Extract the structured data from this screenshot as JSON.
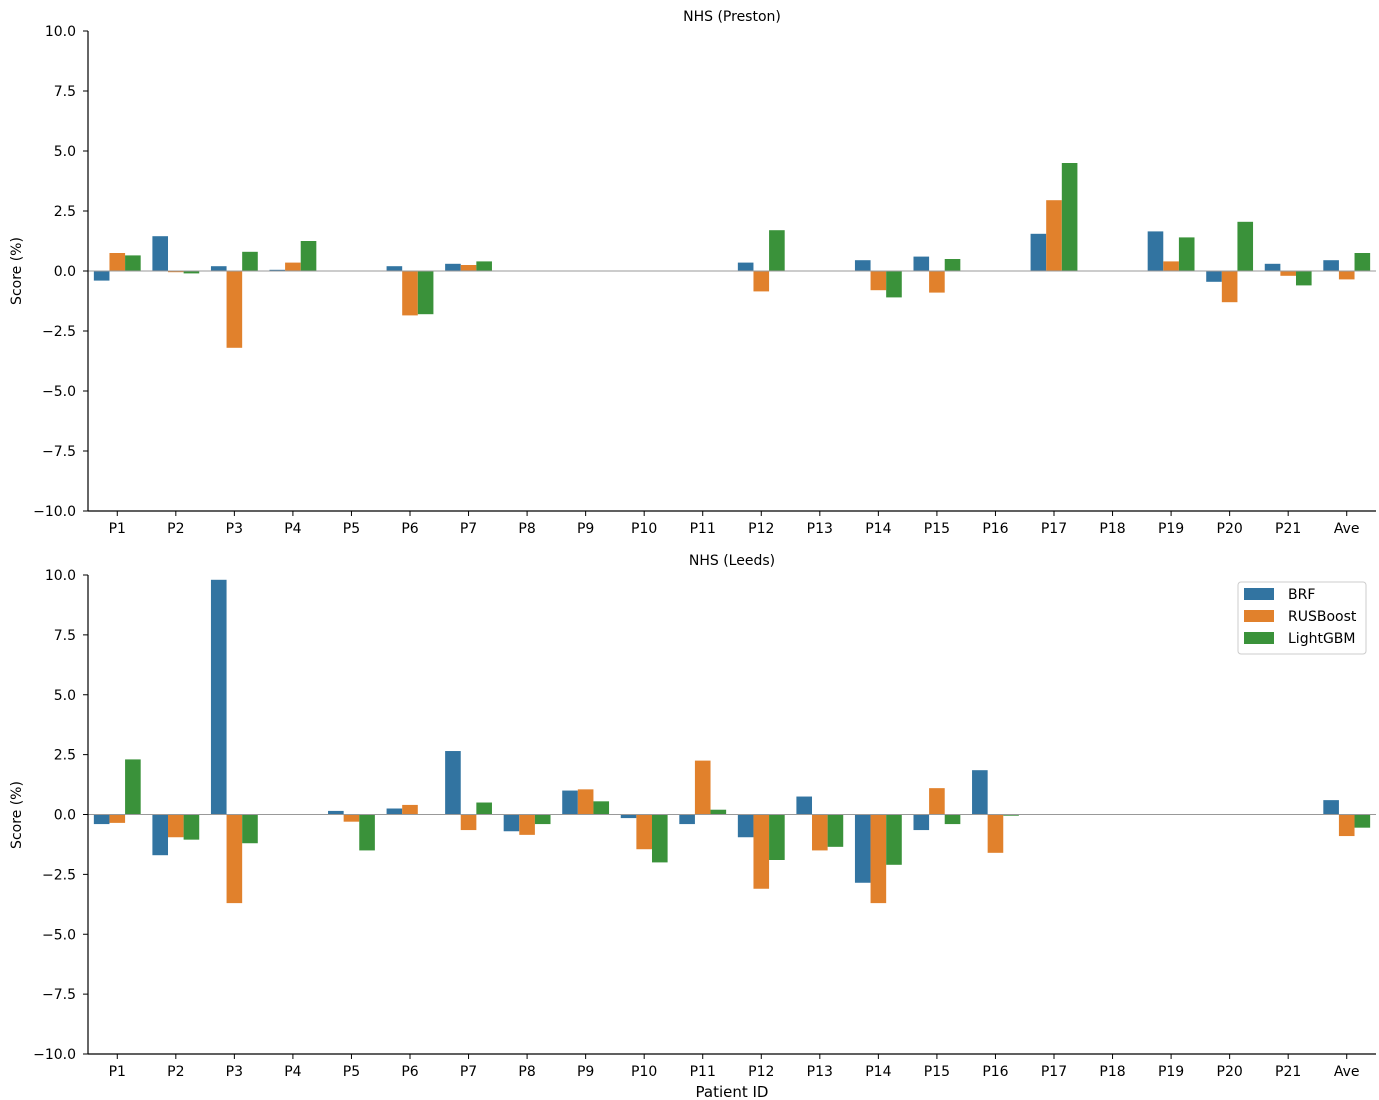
{
  "figure": {
    "xlabel_bottom": "Patient ID"
  },
  "legend": {
    "entries": [
      "BRF",
      "RUSBoost",
      "LightGBM"
    ],
    "placement": "top-right of lower panel"
  },
  "colors": {
    "BRF": "#3274a1",
    "RUSBoost": "#e1812c",
    "LightGBM": "#3a923a",
    "zero_line": "#999999"
  },
  "chart_data": [
    {
      "type": "bar",
      "title": "NHS (Preston)",
      "xlabel": "",
      "ylabel": "Score (%)",
      "ylim": [
        -10,
        10
      ],
      "yticks": [
        "10.0",
        "7.5",
        "5.0",
        "2.5",
        "0.0",
        "−2.5",
        "−5.0",
        "−7.5",
        "−10.0"
      ],
      "categories": [
        "P1",
        "P2",
        "P3",
        "P4",
        "P5",
        "P6",
        "P7",
        "P8",
        "P9",
        "P10",
        "P11",
        "P12",
        "P13",
        "P14",
        "P15",
        "P16",
        "P17",
        "P18",
        "P19",
        "P20",
        "P21",
        "Ave"
      ],
      "series": [
        {
          "name": "BRF",
          "values": [
            -0.4,
            1.45,
            0.2,
            0.05,
            0,
            0.2,
            0.3,
            0,
            0,
            0,
            0,
            0.35,
            0,
            0.45,
            0.6,
            0,
            1.55,
            0,
            1.65,
            -0.45,
            0.3,
            0.45
          ]
        },
        {
          "name": "RUSBoost",
          "values": [
            0.75,
            -0.05,
            -3.2,
            0.35,
            0,
            -1.85,
            0.25,
            0,
            0,
            0,
            0,
            -0.85,
            0,
            -0.8,
            -0.9,
            0,
            2.95,
            0,
            0.4,
            -1.3,
            -0.2,
            -0.35
          ]
        },
        {
          "name": "LightGBM",
          "values": [
            0.65,
            -0.1,
            0.8,
            1.25,
            0,
            -1.8,
            0.4,
            0,
            0,
            0,
            0,
            1.7,
            0,
            -1.1,
            0.5,
            0,
            4.5,
            0,
            1.4,
            2.05,
            -0.6,
            0.75
          ]
        }
      ],
      "grid": false
    },
    {
      "type": "bar",
      "title": "NHS (Leeds)",
      "xlabel": "Patient ID",
      "ylabel": "Score (%)",
      "ylim": [
        -10,
        10
      ],
      "yticks": [
        "10.0",
        "7.5",
        "5.0",
        "2.5",
        "0.0",
        "−2.5",
        "−5.0",
        "−7.5",
        "−10.0"
      ],
      "categories": [
        "P1",
        "P2",
        "P3",
        "P4",
        "P5",
        "P6",
        "P7",
        "P8",
        "P9",
        "P10",
        "P11",
        "P12",
        "P13",
        "P14",
        "P15",
        "P16",
        "P17",
        "P18",
        "P19",
        "P20",
        "P21",
        "Ave"
      ],
      "series": [
        {
          "name": "BRF",
          "values": [
            -0.4,
            -1.7,
            9.8,
            0,
            0.15,
            0.25,
            2.65,
            -0.7,
            1.0,
            -0.15,
            -0.4,
            -0.95,
            0.75,
            -2.85,
            -0.65,
            1.85,
            0,
            0,
            0,
            0,
            0,
            0.6
          ]
        },
        {
          "name": "RUSBoost",
          "values": [
            -0.35,
            -0.95,
            -3.7,
            0,
            -0.3,
            0.4,
            -0.65,
            -0.85,
            1.05,
            -1.45,
            2.25,
            -3.1,
            -1.5,
            -3.7,
            1.1,
            -1.6,
            0,
            0,
            0,
            0,
            0,
            -0.9
          ]
        },
        {
          "name": "LightGBM",
          "values": [
            2.3,
            -1.05,
            -1.2,
            0,
            -1.5,
            0,
            0.5,
            -0.4,
            0.55,
            -2.0,
            0.2,
            -1.9,
            -1.35,
            -2.1,
            -0.4,
            -0.05,
            0,
            0,
            0,
            0,
            0,
            -0.55
          ]
        }
      ],
      "grid": false,
      "legend": "top-right"
    }
  ]
}
